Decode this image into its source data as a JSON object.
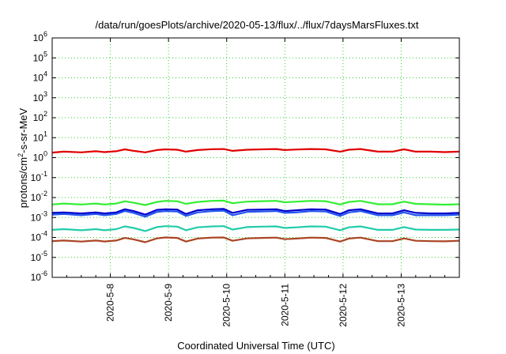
{
  "chart_data": {
    "type": "line",
    "title": "/data/run/goesPlots/archive/2020-05-13/flux/../flux/7daysMarsFluxes.txt",
    "xlabel": "Coordinated Universal Time (UTC)",
    "ylabel": "protons/cm2-s-sr-MeV",
    "ylabel_parts": {
      "base": "protons/cm",
      "sup": "2",
      "rest": "-s-sr-MeV"
    },
    "yscale": "log",
    "ylim_exponents": [
      -6,
      6
    ],
    "ytick_base": "10",
    "ytick_exponents": [
      "-6",
      "-5",
      "-4",
      "-3",
      "-2",
      "-1",
      "0",
      "1",
      "2",
      "3",
      "4",
      "5",
      "6"
    ],
    "x_ticks": [
      "2020-5-8",
      "2020-5-9",
      "2020-5-10",
      "2020-5-11",
      "2020-5-12",
      "2020-5-13"
    ],
    "x_tick_positions_days": [
      1,
      2,
      3,
      4,
      5,
      6
    ],
    "xlim_days": [
      0,
      7
    ],
    "grid": true,
    "grid_color": "#33cc33",
    "series": [
      {
        "color": "#e00000",
        "x": [
          0.0,
          0.2,
          0.5,
          0.75,
          0.9,
          1.1,
          1.25,
          1.4,
          1.6,
          1.8,
          1.95,
          2.15,
          2.3,
          2.5,
          2.75,
          2.95,
          3.1,
          3.35,
          3.6,
          3.85,
          4.0,
          4.2,
          4.45,
          4.7,
          4.95,
          5.1,
          5.3,
          5.6,
          5.85,
          6.05,
          6.25,
          6.5,
          6.75,
          7.0
        ],
        "y": [
          1.8,
          2.0,
          1.85,
          2.1,
          1.9,
          2.1,
          2.6,
          2.2,
          1.85,
          2.4,
          2.6,
          2.5,
          2.0,
          2.4,
          2.65,
          2.7,
          2.2,
          2.5,
          2.6,
          2.7,
          2.4,
          2.55,
          2.7,
          2.6,
          2.0,
          2.5,
          2.7,
          2.0,
          2.0,
          2.6,
          2.0,
          2.0,
          1.9,
          2.0
        ]
      },
      {
        "color": "#33ee33",
        "x": [
          0.0,
          0.2,
          0.5,
          0.75,
          0.9,
          1.1,
          1.25,
          1.4,
          1.6,
          1.8,
          1.95,
          2.15,
          2.3,
          2.5,
          2.75,
          2.95,
          3.1,
          3.35,
          3.6,
          3.85,
          4.0,
          4.2,
          4.45,
          4.7,
          4.95,
          5.1,
          5.3,
          5.6,
          5.85,
          6.05,
          6.25,
          6.5,
          6.75,
          7.0
        ],
        "y": [
          0.0045,
          0.005,
          0.0045,
          0.005,
          0.0045,
          0.005,
          0.0065,
          0.0055,
          0.0042,
          0.006,
          0.0068,
          0.0065,
          0.0048,
          0.006,
          0.0068,
          0.007,
          0.0052,
          0.0062,
          0.0066,
          0.0068,
          0.0058,
          0.0062,
          0.0068,
          0.0066,
          0.0045,
          0.006,
          0.0068,
          0.0046,
          0.0046,
          0.0062,
          0.0048,
          0.0046,
          0.0044,
          0.0046
        ]
      },
      {
        "color": "#0000cc",
        "x": [
          0.0,
          0.2,
          0.5,
          0.75,
          0.9,
          1.1,
          1.25,
          1.4,
          1.6,
          1.8,
          1.95,
          2.15,
          2.3,
          2.5,
          2.75,
          2.95,
          3.1,
          3.35,
          3.6,
          3.85,
          4.0,
          4.2,
          4.45,
          4.7,
          4.95,
          5.1,
          5.3,
          5.6,
          5.85,
          6.05,
          6.25,
          6.5,
          6.75,
          7.0
        ],
        "y": [
          0.0017,
          0.0018,
          0.0016,
          0.0018,
          0.0016,
          0.0018,
          0.0026,
          0.0021,
          0.0014,
          0.0024,
          0.0026,
          0.0025,
          0.0015,
          0.0023,
          0.0026,
          0.0027,
          0.0017,
          0.0024,
          0.0025,
          0.0026,
          0.0021,
          0.0023,
          0.0026,
          0.0025,
          0.0015,
          0.0023,
          0.0026,
          0.0016,
          0.0016,
          0.0023,
          0.0017,
          0.0016,
          0.0016,
          0.0017
        ]
      },
      {
        "color": "#2255ee",
        "x": [
          0.0,
          0.2,
          0.5,
          0.75,
          0.9,
          1.1,
          1.25,
          1.4,
          1.6,
          1.8,
          1.95,
          2.15,
          2.3,
          2.5,
          2.75,
          2.95,
          3.1,
          3.35,
          3.6,
          3.85,
          4.0,
          4.2,
          4.45,
          4.7,
          4.95,
          5.1,
          5.3,
          5.6,
          5.85,
          6.05,
          6.25,
          6.5,
          6.75,
          7.0
        ],
        "y": [
          0.0014,
          0.0015,
          0.0013,
          0.0015,
          0.0013,
          0.0015,
          0.0021,
          0.0017,
          0.0011,
          0.0019,
          0.0021,
          0.002,
          0.0012,
          0.0018,
          0.0021,
          0.0022,
          0.0013,
          0.0019,
          0.002,
          0.0021,
          0.0017,
          0.0018,
          0.0021,
          0.002,
          0.0012,
          0.0018,
          0.0021,
          0.0013,
          0.0013,
          0.0018,
          0.0013,
          0.0013,
          0.0013,
          0.0014
        ]
      },
      {
        "color": "#22ccaa",
        "x": [
          0.0,
          0.2,
          0.5,
          0.75,
          0.9,
          1.1,
          1.25,
          1.4,
          1.6,
          1.8,
          1.95,
          2.15,
          2.3,
          2.5,
          2.75,
          2.95,
          3.1,
          3.35,
          3.6,
          3.85,
          4.0,
          4.2,
          4.45,
          4.7,
          4.95,
          5.1,
          5.3,
          5.6,
          5.85,
          6.05,
          6.25,
          6.5,
          6.75,
          7.0
        ],
        "y": [
          0.00024,
          0.00026,
          0.00023,
          0.00026,
          0.00023,
          0.00026,
          0.00036,
          0.0003,
          0.00021,
          0.00033,
          0.00037,
          0.00035,
          0.00023,
          0.00032,
          0.00036,
          0.00037,
          0.00025,
          0.00033,
          0.00035,
          0.00036,
          0.0003,
          0.00032,
          0.00036,
          0.00035,
          0.00023,
          0.00032,
          0.00036,
          0.00024,
          0.00024,
          0.00033,
          0.00025,
          0.00024,
          0.00024,
          0.00025
        ]
      },
      {
        "color": "#aa4422",
        "x": [
          0.0,
          0.2,
          0.5,
          0.75,
          0.9,
          1.1,
          1.25,
          1.4,
          1.6,
          1.8,
          1.95,
          2.15,
          2.3,
          2.5,
          2.75,
          2.95,
          3.1,
          3.35,
          3.6,
          3.85,
          4.0,
          4.2,
          4.45,
          4.7,
          4.95,
          5.1,
          5.3,
          5.6,
          5.85,
          6.05,
          6.25,
          6.5,
          6.75,
          7.0
        ],
        "y": [
          6.5e-05,
          7e-05,
          6.2e-05,
          7e-05,
          6.3e-05,
          7e-05,
          9.5e-05,
          8e-05,
          5.8e-05,
          9e-05,
          0.0001,
          9.5e-05,
          6.2e-05,
          8.8e-05,
          9.8e-05,
          0.0001,
          6.8e-05,
          9e-05,
          9.5e-05,
          9.8e-05,
          8.2e-05,
          8.8e-05,
          9.8e-05,
          9.5e-05,
          6.2e-05,
          8.8e-05,
          9.8e-05,
          6.5e-05,
          6.5e-05,
          9e-05,
          6.8e-05,
          6.5e-05,
          6.4e-05,
          6.8e-05
        ]
      }
    ]
  }
}
